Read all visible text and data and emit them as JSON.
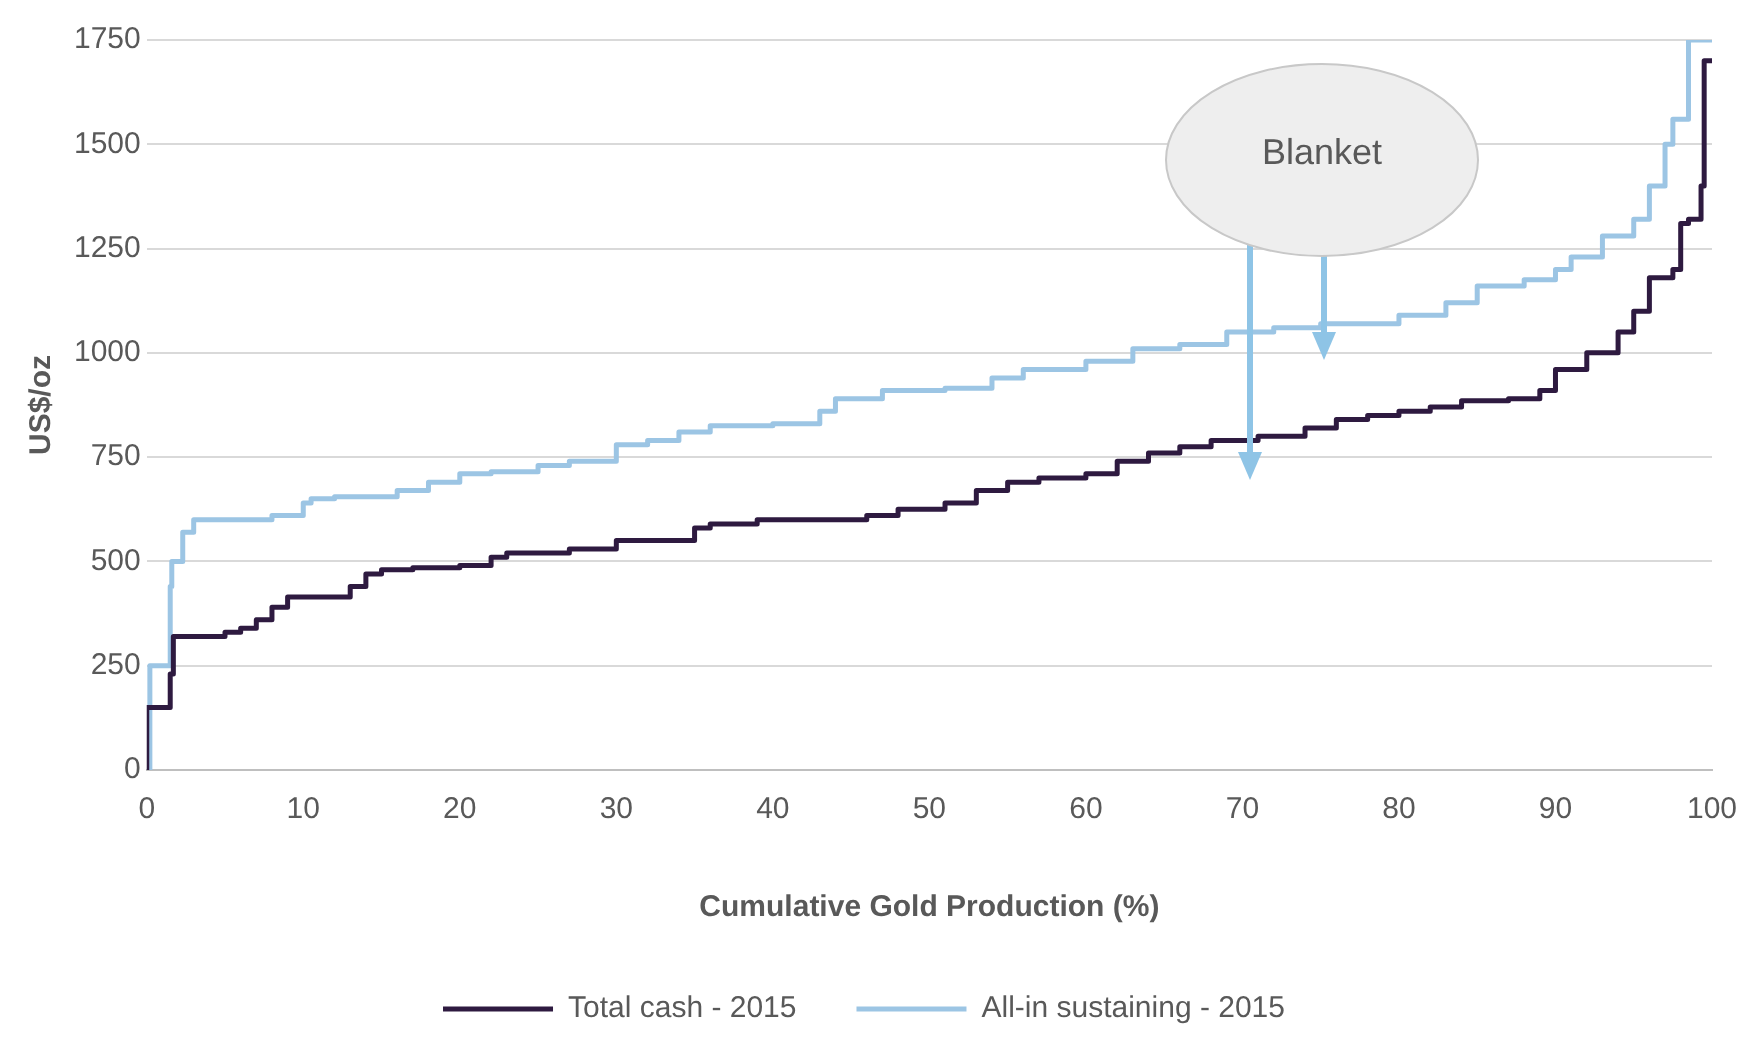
{
  "chart_data": {
    "type": "step",
    "xlabel": "Cumulative Gold Production (%)",
    "ylabel": "US$/oz",
    "xlim": [
      0,
      100
    ],
    "xticks": [
      0,
      10,
      20,
      30,
      40,
      50,
      60,
      70,
      80,
      90,
      100
    ],
    "ylim": [
      0,
      1750
    ],
    "yticks": [
      0,
      250,
      500,
      750,
      1000,
      1250,
      1500,
      1750
    ],
    "grid": "y",
    "legend": "bottom",
    "marker": "none",
    "line_style": "solid",
    "annotations": [
      "Blanket"
    ],
    "series": [
      {
        "name": "Total cash - 2015",
        "color": "#2e1a40",
        "x": [
          0,
          0.2,
          1.5,
          1.7,
          2,
          5,
          6,
          7,
          8,
          9,
          10,
          13,
          14,
          15,
          17,
          20,
          22,
          23,
          27,
          30,
          32,
          35,
          36,
          39,
          42,
          46,
          48,
          51,
          53,
          55,
          57,
          60,
          62,
          64,
          66,
          68,
          71,
          74,
          76,
          78,
          80,
          82,
          84,
          87,
          89,
          90,
          92,
          94,
          95,
          96,
          97.5,
          98,
          98.5,
          99.3,
          99.5,
          99.8,
          100
        ],
        "values": [
          0,
          150,
          150,
          230,
          320,
          320,
          330,
          340,
          360,
          390,
          415,
          415,
          440,
          470,
          480,
          485,
          490,
          510,
          520,
          530,
          550,
          550,
          580,
          590,
          600,
          600,
          610,
          625,
          640,
          670,
          690,
          700,
          710,
          740,
          760,
          775,
          790,
          800,
          820,
          840,
          850,
          860,
          870,
          885,
          890,
          910,
          960,
          1000,
          1050,
          1100,
          1180,
          1200,
          1310,
          1320,
          1400,
          1700,
          1700
        ]
      },
      {
        "name": "All-in sustaining - 2015",
        "color": "#9cc5e4",
        "x": [
          0,
          0.2,
          0.3,
          1.5,
          1.6,
          2.3,
          3,
          3.5,
          8,
          10,
          10.5,
          12,
          16,
          18,
          20,
          22,
          25,
          27,
          30,
          32,
          34,
          36,
          40,
          43,
          44,
          47,
          51,
          54,
          56,
          60,
          63,
          66,
          69,
          72,
          75,
          80,
          83,
          85,
          88,
          90,
          91,
          93,
          95,
          96,
          97,
          97.5,
          98.5,
          99.5,
          100
        ],
        "values": [
          0,
          0,
          250,
          250,
          440,
          500,
          570,
          600,
          600,
          610,
          640,
          650,
          655,
          670,
          690,
          710,
          715,
          730,
          740,
          780,
          790,
          810,
          825,
          830,
          860,
          890,
          910,
          915,
          940,
          960,
          980,
          1010,
          1020,
          1050,
          1060,
          1070,
          1090,
          1120,
          1160,
          1175,
          1200,
          1230,
          1280,
          1320,
          1400,
          1500,
          1560,
          1750,
          1750
        ]
      }
    ]
  }
}
